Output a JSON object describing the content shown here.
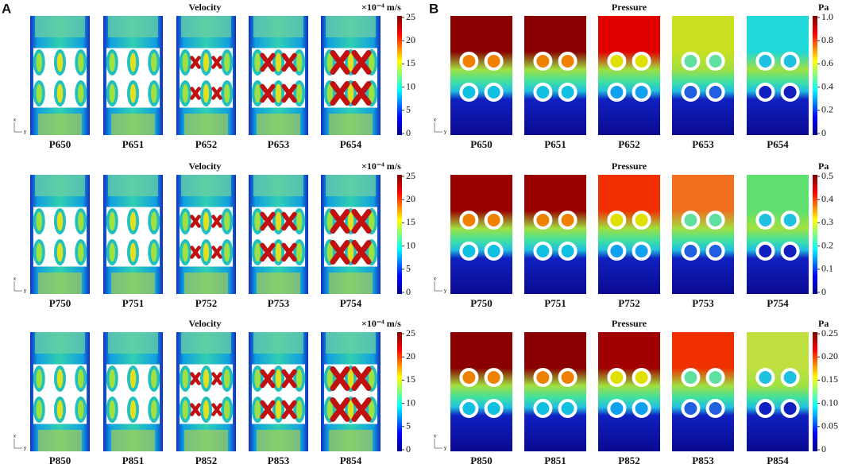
{
  "panels": [
    {
      "letter": "A",
      "rows": [
        {
          "title": "Velocity",
          "unit": "×10⁻⁴ m/s",
          "ticks": [
            "25",
            "20",
            "15",
            "10",
            "5",
            "0"
          ],
          "axes": [
            "x",
            "y"
          ],
          "labels": [
            "P650",
            "P651",
            "P652",
            "P653",
            "P654"
          ]
        },
        {
          "title": "Velocity",
          "unit": "×10⁻⁴ m/s",
          "ticks": [
            "25",
            "20",
            "15",
            "10",
            "5",
            "0"
          ],
          "axes": [
            "x",
            "y"
          ],
          "labels": [
            "P750",
            "P751",
            "P752",
            "P753",
            "P754"
          ]
        },
        {
          "title": "Velocity",
          "unit": "×10⁻⁴ m/s",
          "ticks": [
            "25",
            "20",
            "15",
            "10",
            "5",
            "0"
          ],
          "axes": [
            "x",
            "y"
          ],
          "labels": [
            "P850",
            "P851",
            "P852",
            "P853",
            "P854"
          ]
        }
      ]
    },
    {
      "letter": "B",
      "rows": [
        {
          "title": "Pressure",
          "unit": "Pa",
          "ticks": [
            "1.0",
            "0.8",
            "0.6",
            "0.4",
            "0.2",
            "0"
          ],
          "axes": [
            "x",
            "y"
          ],
          "labels": [
            "P650",
            "P651",
            "P652",
            "P653",
            "P654"
          ]
        },
        {
          "title": "Pressure",
          "unit": "Pa",
          "ticks": [
            "0.5",
            "0.4",
            "0.3",
            "0.2",
            "0.1",
            "0"
          ],
          "axes": [
            "x",
            "y"
          ],
          "labels": [
            "P750",
            "P751",
            "P752",
            "P753",
            "P754"
          ]
        },
        {
          "title": "Pressure",
          "unit": "Pa",
          "ticks": [
            "0.25",
            "0.20",
            "0.15",
            "0.10",
            "0.05",
            "0"
          ],
          "axes": [
            "x",
            "y"
          ],
          "labels": [
            "P850",
            "P851",
            "P852",
            "P853",
            "P854"
          ]
        }
      ]
    }
  ]
}
